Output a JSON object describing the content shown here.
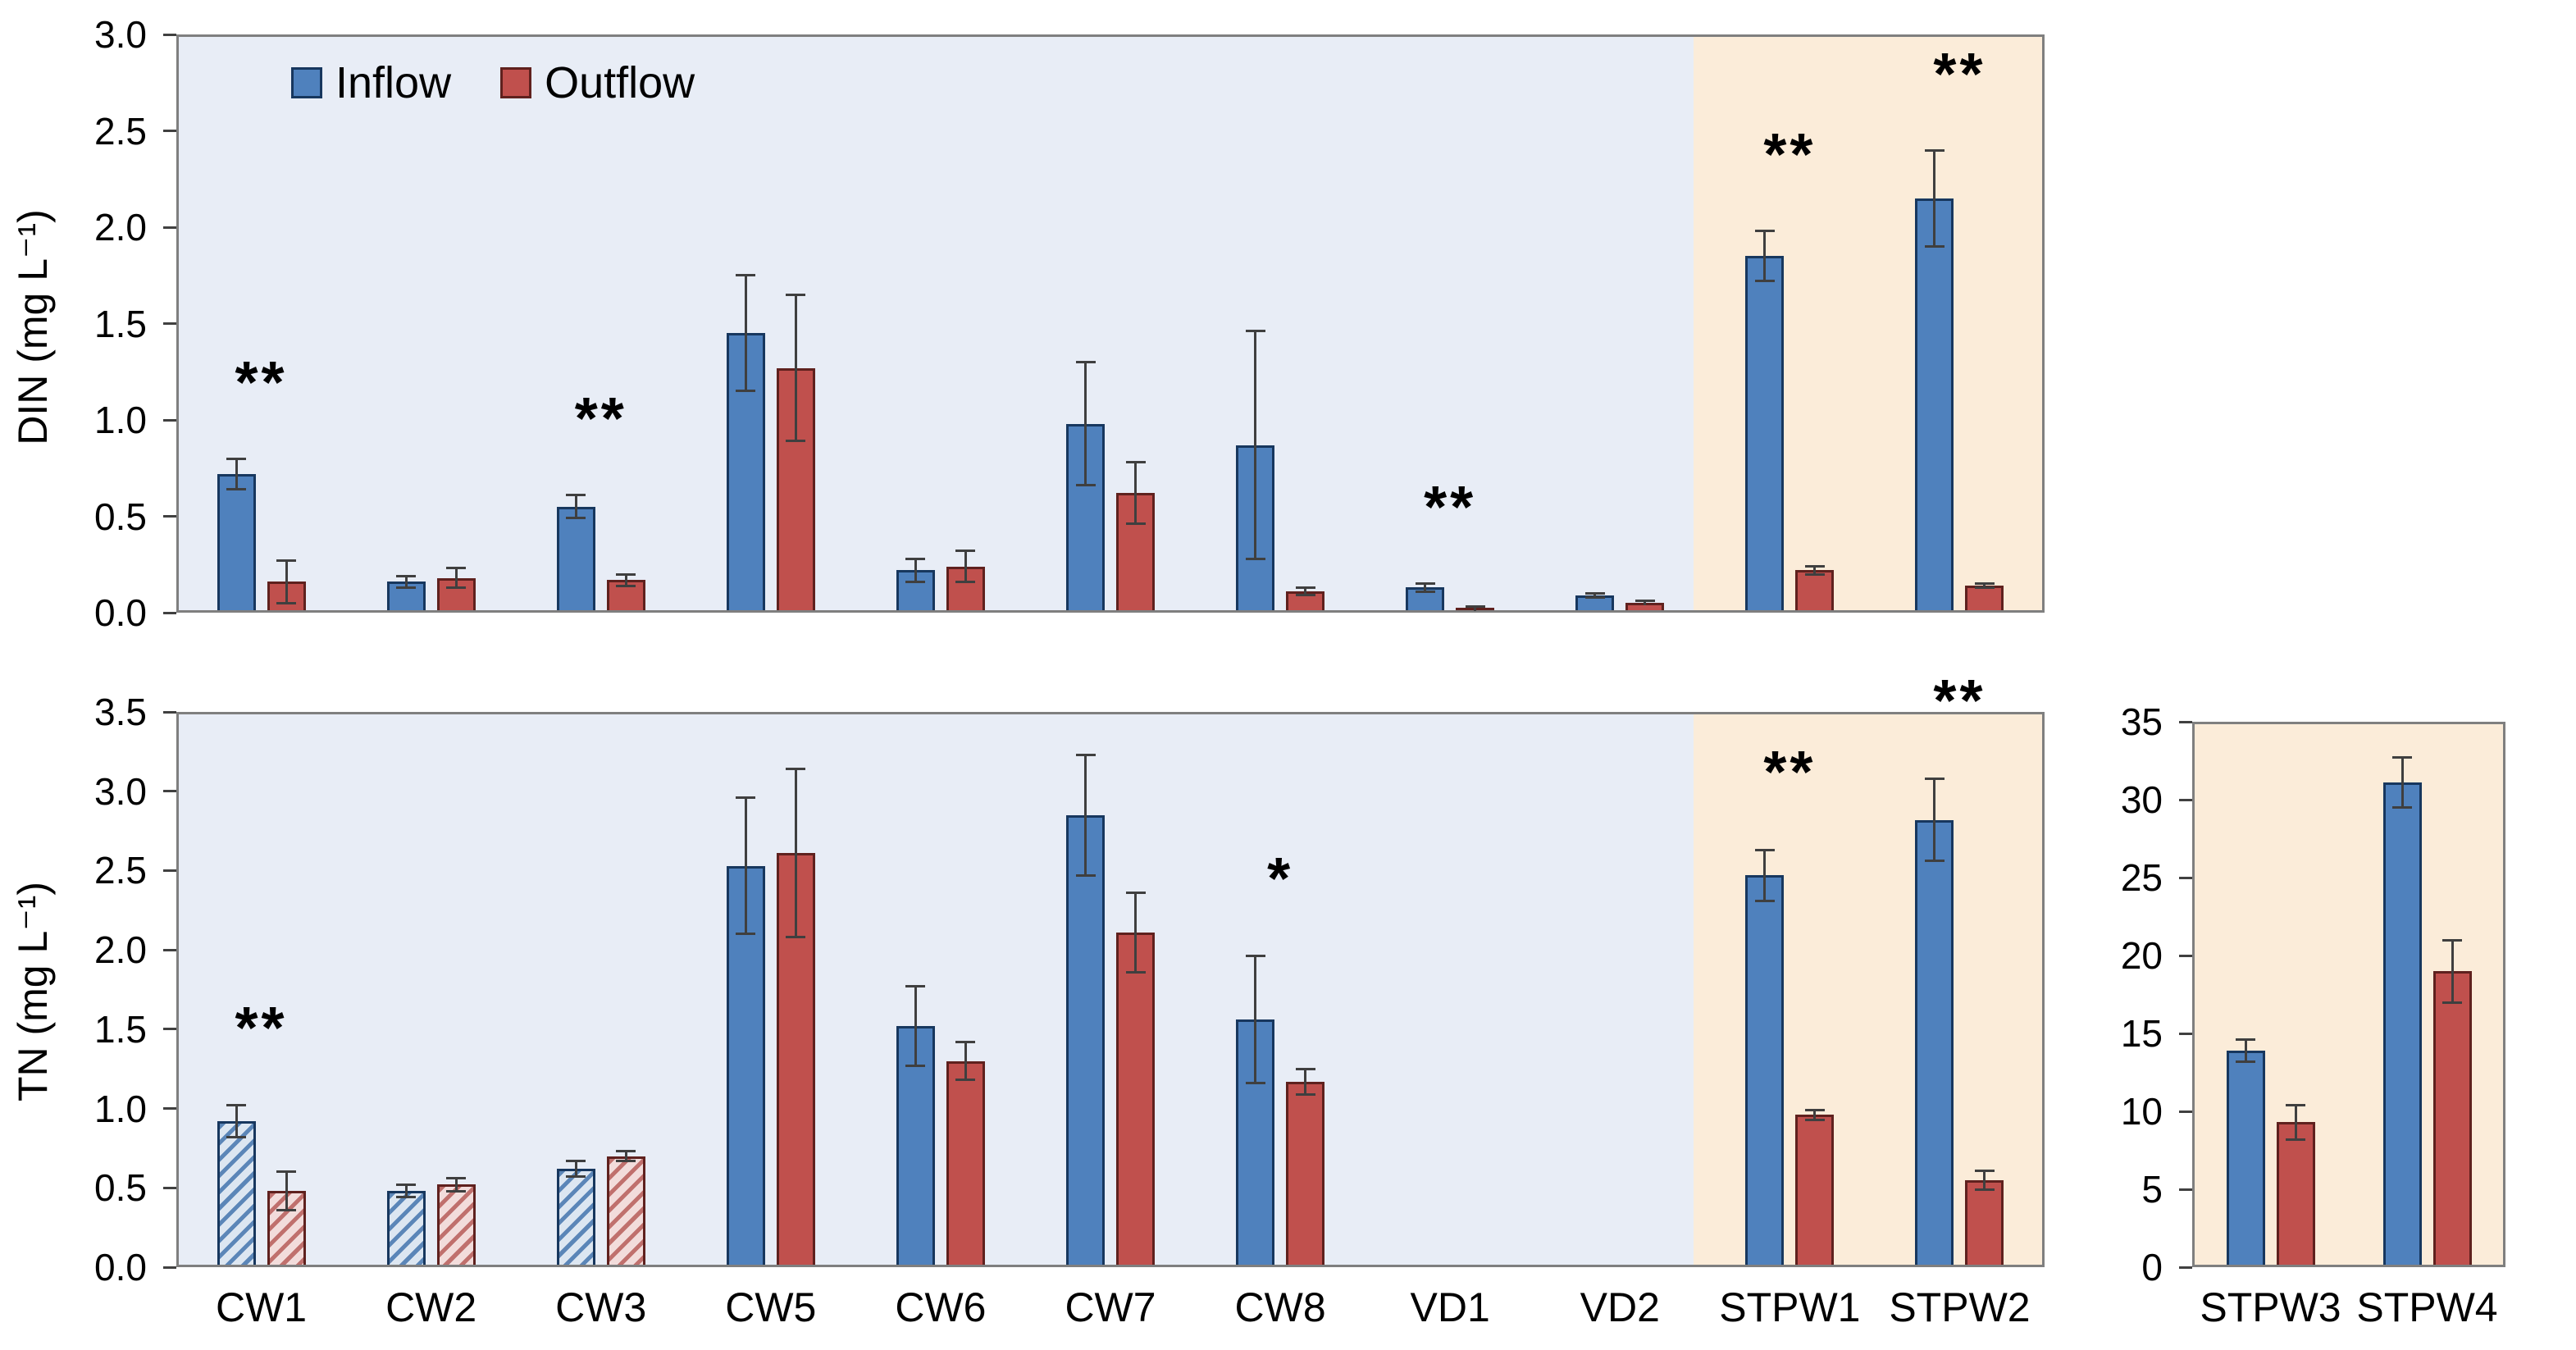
{
  "colors": {
    "inflow": "#4f81bd",
    "outflow": "#c0504d",
    "inflow_border": "#17375e",
    "outflow_border": "#5f211e",
    "blue_background": "#e8edf6",
    "orange_background": "#fbecd9",
    "axis_gray": "#7f7f7f",
    "error_bar": "#3f3f3f"
  },
  "legend": {
    "items": [
      {
        "label": "Inflow",
        "swatch": "inflow-swatch-icon"
      },
      {
        "label": "Outflow",
        "swatch": "outflow-swatch-icon"
      }
    ]
  },
  "chart_data": [
    {
      "id": "din",
      "type": "bar",
      "title": "",
      "xlabel": "",
      "ylabel": "DIN (mg L⁻¹)",
      "ylim": [
        0,
        3.0
      ],
      "yticks": [
        "0.0",
        "0.5",
        "1.0",
        "1.5",
        "2.0",
        "2.5",
        "3.0"
      ],
      "categories": [
        "CW1",
        "CW2",
        "CW3",
        "CW5",
        "CW6",
        "CW7",
        "CW8",
        "VD1",
        "VD2",
        "STPW1",
        "STPW2"
      ],
      "show_category_labels": false,
      "grid": false,
      "legend_position": "top-left",
      "series": [
        {
          "name": "Inflow",
          "values": [
            0.72,
            0.16,
            0.55,
            1.45,
            0.22,
            0.98,
            0.87,
            0.13,
            0.09,
            1.85,
            2.15
          ],
          "errors": [
            0.08,
            0.03,
            0.06,
            0.3,
            0.06,
            0.32,
            0.59,
            0.02,
            0.01,
            0.13,
            0.25
          ]
        },
        {
          "name": "Outflow",
          "values": [
            0.16,
            0.18,
            0.17,
            1.27,
            0.24,
            0.62,
            0.11,
            0.02,
            0.05,
            0.22,
            0.14
          ],
          "errors": [
            0.11,
            0.05,
            0.03,
            0.38,
            0.08,
            0.16,
            0.02,
            0.01,
            0.01,
            0.02,
            0.01
          ]
        }
      ],
      "hatched_categories": [],
      "significance": [
        {
          "category": "CW1",
          "label": "**"
        },
        {
          "category": "CW3",
          "label": "**"
        },
        {
          "category": "VD1",
          "label": "**"
        },
        {
          "category": "STPW1",
          "label": "**"
        },
        {
          "category": "STPW2",
          "label": "**"
        }
      ],
      "blue_region_categories": [
        "CW1",
        "CW2",
        "CW3",
        "CW5",
        "CW6",
        "CW7",
        "CW8",
        "VD1",
        "VD2"
      ],
      "orange_region_categories": [
        "STPW1",
        "STPW2"
      ]
    },
    {
      "id": "tn",
      "type": "bar",
      "title": "",
      "xlabel": "",
      "ylabel": "TN (mg L⁻¹)",
      "ylim": [
        0,
        3.5
      ],
      "yticks": [
        "0.0",
        "0.5",
        "1.0",
        "1.5",
        "2.0",
        "2.5",
        "3.0",
        "3.5"
      ],
      "categories": [
        "CW1",
        "CW2",
        "CW3",
        "CW5",
        "CW6",
        "CW7",
        "CW8",
        "VD1",
        "VD2",
        "STPW1",
        "STPW2"
      ],
      "show_category_labels": true,
      "grid": false,
      "legend_position": null,
      "series": [
        {
          "name": "Inflow",
          "values": [
            0.92,
            0.48,
            0.62,
            2.53,
            1.52,
            2.85,
            1.56,
            null,
            null,
            2.47,
            2.82
          ],
          "errors": [
            0.1,
            0.04,
            0.05,
            0.43,
            0.25,
            0.38,
            0.4,
            null,
            null,
            0.16,
            0.26
          ]
        },
        {
          "name": "Outflow",
          "values": [
            0.48,
            0.52,
            0.7,
            2.61,
            1.3,
            2.11,
            1.17,
            null,
            null,
            0.96,
            0.55
          ],
          "errors": [
            0.12,
            0.04,
            0.03,
            0.53,
            0.12,
            0.25,
            0.08,
            null,
            null,
            0.03,
            0.06
          ]
        }
      ],
      "hatched_categories": [
        "CW1",
        "CW2",
        "CW3"
      ],
      "significance": [
        {
          "category": "CW1",
          "label": "**"
        },
        {
          "category": "CW8",
          "label": "*"
        },
        {
          "category": "STPW1",
          "label": "**"
        },
        {
          "category": "STPW2",
          "label": "**"
        }
      ],
      "blue_region_categories": [
        "CW1",
        "CW2",
        "CW3",
        "CW5",
        "CW6",
        "CW7",
        "CW8",
        "VD1",
        "VD2"
      ],
      "orange_region_categories": [
        "STPW1",
        "STPW2"
      ]
    },
    {
      "id": "tn-stpw",
      "type": "bar",
      "title": "",
      "xlabel": "",
      "ylabel": "",
      "ylim": [
        0,
        35
      ],
      "yticks": [
        "0",
        "5",
        "10",
        "15",
        "20",
        "25",
        "30",
        "35"
      ],
      "categories": [
        "STPW3",
        "STPW4"
      ],
      "show_category_labels": true,
      "grid": false,
      "legend_position": null,
      "series": [
        {
          "name": "Inflow",
          "values": [
            13.9,
            31.1
          ],
          "errors": [
            0.7,
            1.6
          ]
        },
        {
          "name": "Outflow",
          "values": [
            9.3,
            19.0
          ],
          "errors": [
            1.1,
            2.0
          ]
        }
      ],
      "hatched_categories": [],
      "significance": [],
      "blue_region_categories": [],
      "orange_region_categories": [
        "STPW3",
        "STPW4"
      ]
    }
  ]
}
